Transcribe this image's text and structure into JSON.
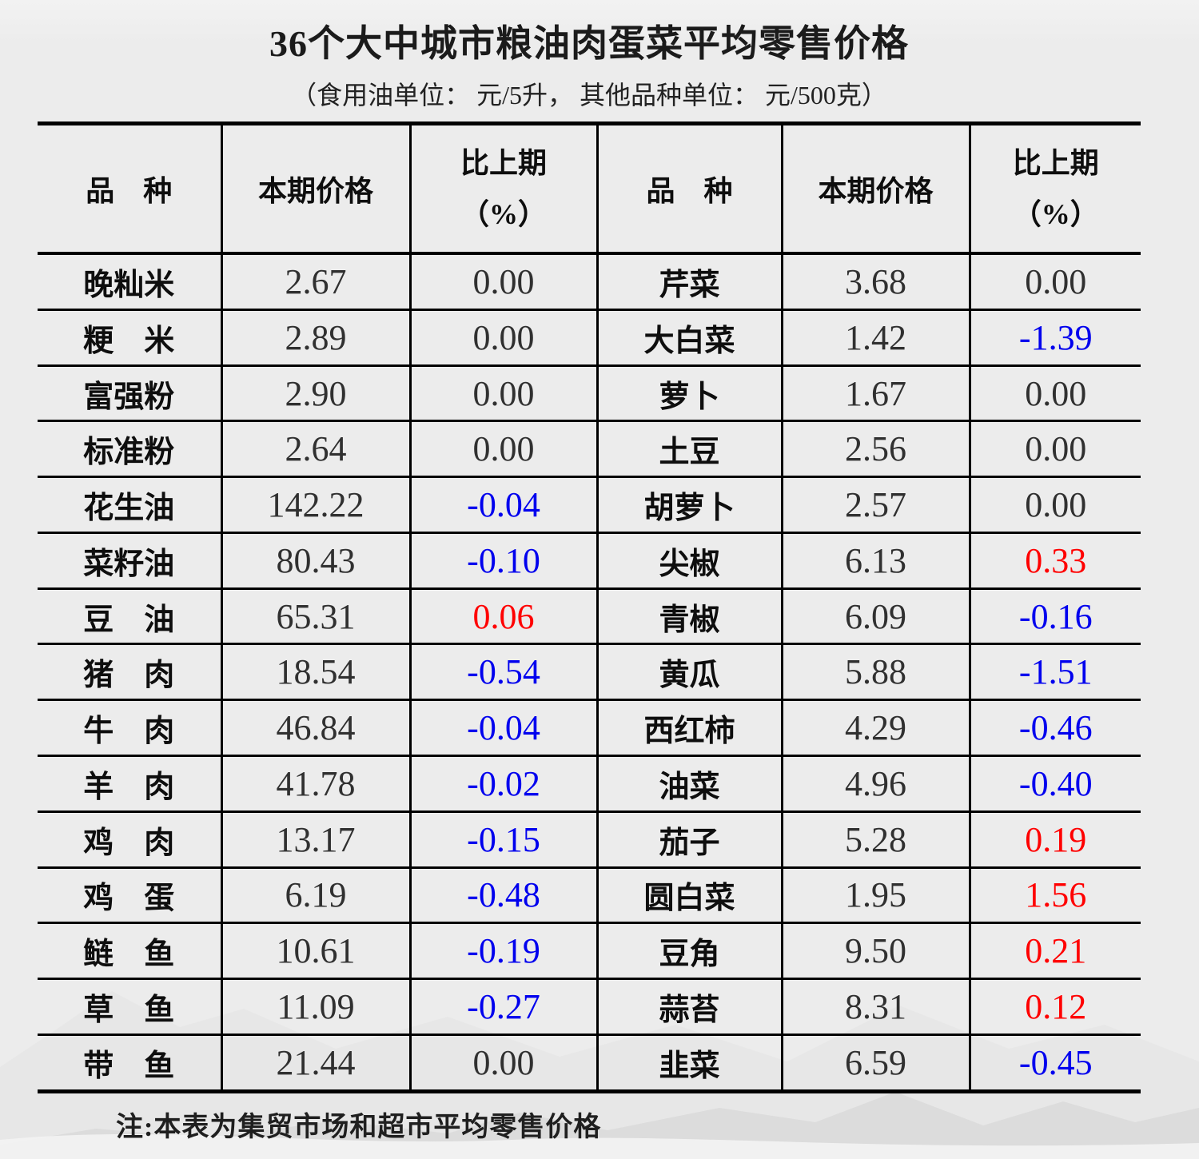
{
  "title": "36个大中城市粮油肉蛋菜平均零售价格",
  "subtitle": "（食用油单位： 元/5升， 其他品种单位： 元/500克）",
  "note": "注:本表为集贸市场和超市平均零售价格",
  "header": {
    "item": "品　种",
    "price": "本期价格",
    "change_top": "比上期",
    "change_bottom": "（%）"
  },
  "colors": {
    "background": "#ececec",
    "up": "#ff0000",
    "down": "#0000ee",
    "zero": "#303030"
  },
  "rows": [
    {
      "l_name": "晚籼米",
      "l_price": "2.67",
      "l_chg": "0.00",
      "l_dir": "zero",
      "r_name": "芹菜",
      "r_price": "3.68",
      "r_chg": "0.00",
      "r_dir": "zero"
    },
    {
      "l_name": "粳　米",
      "l_price": "2.89",
      "l_chg": "0.00",
      "l_dir": "zero",
      "r_name": "大白菜",
      "r_price": "1.42",
      "r_chg": "-1.39",
      "r_dir": "down"
    },
    {
      "l_name": "富强粉",
      "l_price": "2.90",
      "l_chg": "0.00",
      "l_dir": "zero",
      "r_name": "萝卜",
      "r_price": "1.67",
      "r_chg": "0.00",
      "r_dir": "zero"
    },
    {
      "l_name": "标准粉",
      "l_price": "2.64",
      "l_chg": "0.00",
      "l_dir": "zero",
      "r_name": "土豆",
      "r_price": "2.56",
      "r_chg": "0.00",
      "r_dir": "zero"
    },
    {
      "l_name": "花生油",
      "l_price": "142.22",
      "l_chg": "-0.04",
      "l_dir": "down",
      "r_name": "胡萝卜",
      "r_price": "2.57",
      "r_chg": "0.00",
      "r_dir": "zero"
    },
    {
      "l_name": "菜籽油",
      "l_price": "80.43",
      "l_chg": "-0.10",
      "l_dir": "down",
      "r_name": "尖椒",
      "r_price": "6.13",
      "r_chg": "0.33",
      "r_dir": "up"
    },
    {
      "l_name": "豆　油",
      "l_price": "65.31",
      "l_chg": "0.06",
      "l_dir": "up",
      "r_name": "青椒",
      "r_price": "6.09",
      "r_chg": "-0.16",
      "r_dir": "down"
    },
    {
      "l_name": "猪　肉",
      "l_price": "18.54",
      "l_chg": "-0.54",
      "l_dir": "down",
      "r_name": "黄瓜",
      "r_price": "5.88",
      "r_chg": "-1.51",
      "r_dir": "down"
    },
    {
      "l_name": "牛　肉",
      "l_price": "46.84",
      "l_chg": "-0.04",
      "l_dir": "down",
      "r_name": "西红柿",
      "r_price": "4.29",
      "r_chg": "-0.46",
      "r_dir": "down"
    },
    {
      "l_name": "羊　肉",
      "l_price": "41.78",
      "l_chg": "-0.02",
      "l_dir": "down",
      "r_name": "油菜",
      "r_price": "4.96",
      "r_chg": "-0.40",
      "r_dir": "down"
    },
    {
      "l_name": "鸡　肉",
      "l_price": "13.17",
      "l_chg": "-0.15",
      "l_dir": "down",
      "r_name": "茄子",
      "r_price": "5.28",
      "r_chg": "0.19",
      "r_dir": "up"
    },
    {
      "l_name": "鸡　蛋",
      "l_price": "6.19",
      "l_chg": "-0.48",
      "l_dir": "down",
      "r_name": "圆白菜",
      "r_price": "1.95",
      "r_chg": "1.56",
      "r_dir": "up"
    },
    {
      "l_name": "鲢　鱼",
      "l_price": "10.61",
      "l_chg": "-0.19",
      "l_dir": "down",
      "r_name": "豆角",
      "r_price": "9.50",
      "r_chg": "0.21",
      "r_dir": "up"
    },
    {
      "l_name": "草　鱼",
      "l_price": "11.09",
      "l_chg": "-0.27",
      "l_dir": "down",
      "r_name": "蒜苔",
      "r_price": "8.31",
      "r_chg": "0.12",
      "r_dir": "up"
    },
    {
      "l_name": "带　鱼",
      "l_price": "21.44",
      "l_chg": "0.00",
      "l_dir": "zero",
      "r_name": "韭菜",
      "r_price": "6.59",
      "r_chg": "-0.45",
      "r_dir": "down"
    }
  ]
}
